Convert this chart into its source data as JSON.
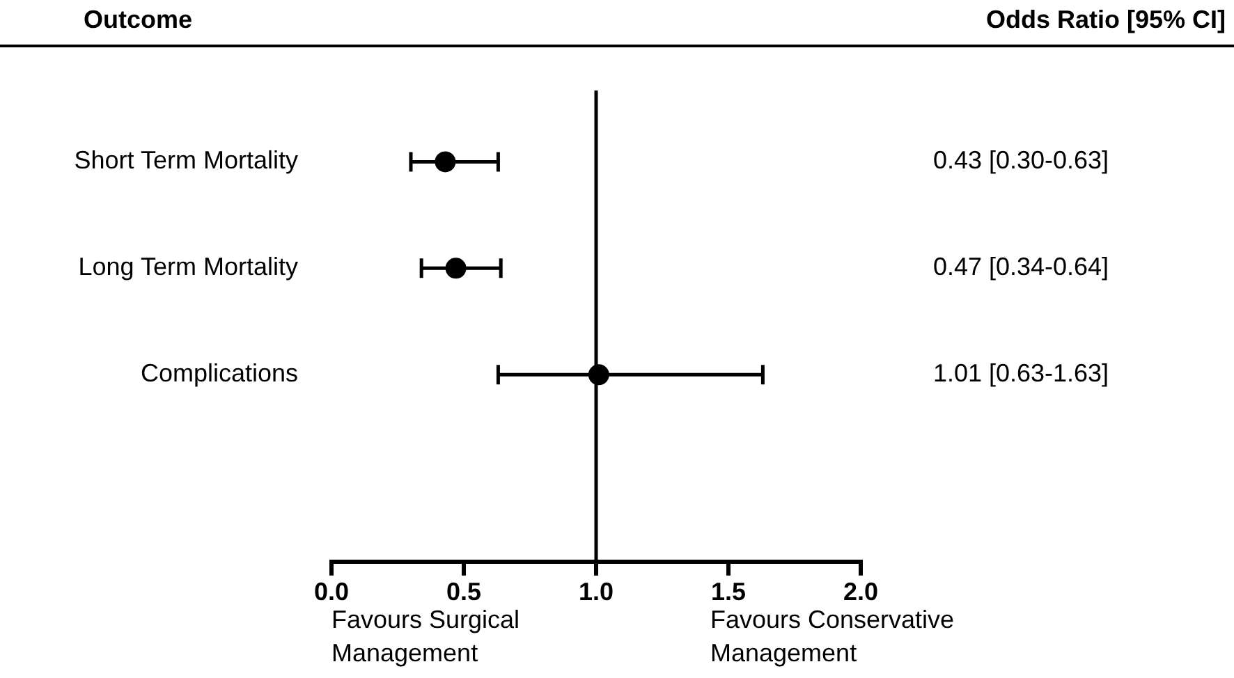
{
  "chart_data": {
    "type": "scatter",
    "orientation": "horizontal",
    "ylabel": "Outcome",
    "categories": [
      "Short Term Mortality",
      "Long Term Mortality",
      "Complications"
    ],
    "series": [
      {
        "color": "#000000",
        "values": [
          0.43,
          0.47,
          1.01
        ],
        "errors": [
          [
            0.3,
            0.63
          ],
          [
            0.34,
            0.64
          ],
          [
            0.63,
            1.63
          ]
        ],
        "value_labels": [
          "0.43 [0.30-0.63]",
          "0.47 [0.34-0.64]",
          "1.01 [0.63-1.63]"
        ]
      }
    ],
    "xlim": [
      0,
      2
    ],
    "xticks": [
      {
        "value": 0,
        "label": "0.0"
      },
      {
        "value": 0.5,
        "label": "0.5"
      },
      {
        "value": 1,
        "label": "1.0"
      },
      {
        "value": 1.5,
        "label": "1.5"
      },
      {
        "value": 2,
        "label": "2.0"
      }
    ],
    "ref_lines": [
      {
        "axis": "x",
        "value": 1,
        "color": "#000000"
      }
    ],
    "annotations": [
      "Odds Ratio [95% CI]",
      "Favours Surgical Management",
      "Favours Conservative Management"
    ],
    "marker": "circle",
    "grid": false,
    "legend": false
  }
}
